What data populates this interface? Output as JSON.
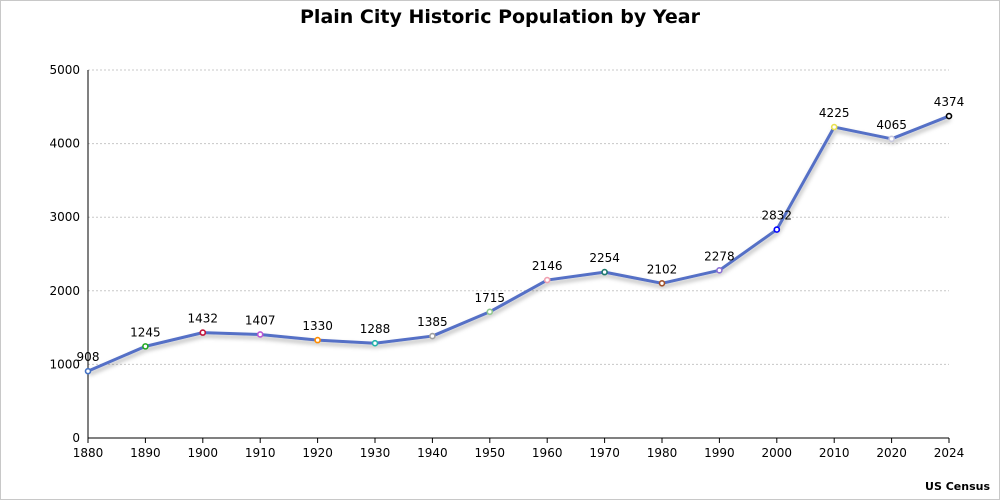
{
  "chart_data": {
    "type": "line",
    "title": "Plain City Historic Population by Year",
    "xlabel": "",
    "ylabel": "",
    "categories": [
      "1880",
      "1890",
      "1900",
      "1910",
      "1920",
      "1930",
      "1940",
      "1950",
      "1960",
      "1970",
      "1980",
      "1990",
      "2000",
      "2010",
      "2020",
      "2024"
    ],
    "series": [
      {
        "name": "Population",
        "values": [
          908,
          1245,
          1432,
          1407,
          1330,
          1288,
          1385,
          1715,
          2146,
          2254,
          2102,
          2278,
          2832,
          4225,
          4065,
          4374
        ],
        "color": "#5470c6",
        "marker_colors": [
          "#4472c4",
          "#22aa22",
          "#c0143c",
          "#ba55d3",
          "#ff8c00",
          "#20b2aa",
          "#a0a0a0",
          "#90c890",
          "#f0a0b0",
          "#1f7a6e",
          "#a0522d",
          "#8a6fd6",
          "#0000ff",
          "#e8e050",
          "#c8c8e0",
          "#000000"
        ]
      }
    ],
    "ylim": [
      0,
      5000
    ],
    "yticks": [
      0,
      1000,
      2000,
      3000,
      4000,
      5000
    ],
    "grid": true,
    "legend": "none",
    "data_labels": true,
    "source": "US Census"
  }
}
